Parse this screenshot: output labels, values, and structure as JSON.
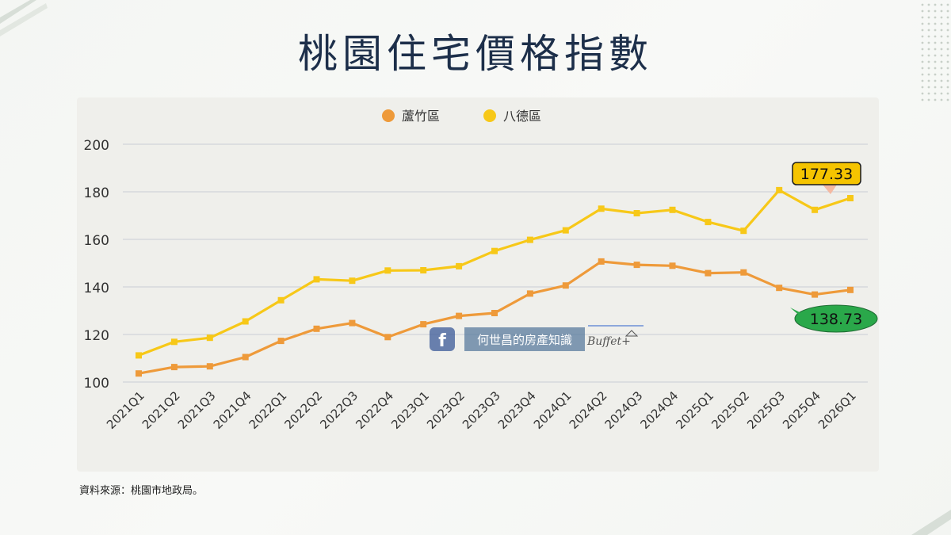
{
  "title": "桃園住宅價格指數",
  "source": "資料來源：桃園市地政局。",
  "watermark": {
    "text": "何世昌的房產知識",
    "brand": "Buffet+",
    "icon": "facebook-icon"
  },
  "colors": {
    "lu_zhu": "#ee9a3a",
    "ba_de": "#f7c818",
    "callout_yellow": "#f5c400",
    "callout_green": "#2aa84a",
    "title": "#1d2f4a"
  },
  "chart_data": {
    "type": "line",
    "title": "",
    "xlabel": "",
    "ylabel": "",
    "ylim": [
      100,
      200
    ],
    "yticks": [
      100,
      120,
      140,
      160,
      180,
      200
    ],
    "grid": true,
    "legend_position": "top-center",
    "categories": [
      "2021Q1",
      "2021Q2",
      "2021Q3",
      "2021Q4",
      "2022Q1",
      "2022Q2",
      "2022Q3",
      "2022Q4",
      "2023Q1",
      "2023Q2",
      "2023Q3",
      "2023Q4",
      "2024Q1",
      "2024Q2",
      "2024Q3",
      "2024Q4",
      "2025Q1",
      "2025Q2",
      "2025Q3",
      "2025Q4",
      "2026Q1"
    ],
    "series": [
      {
        "name": "蘆竹區",
        "color": "#ee9a3a",
        "values": [
          103.6,
          106.3,
          106.6,
          110.5,
          117.3,
          122.4,
          124.8,
          118.9,
          124.3,
          127.8,
          129.0,
          137.2,
          140.6,
          150.7,
          149.3,
          148.9,
          145.8,
          146.1,
          139.6,
          136.8,
          138.73
        ]
      },
      {
        "name": "八德區",
        "color": "#f7c818",
        "values": [
          111.2,
          116.9,
          118.6,
          125.5,
          134.4,
          143.2,
          142.6,
          146.9,
          147.0,
          148.7,
          155.1,
          159.8,
          163.8,
          172.9,
          171.0,
          172.4,
          167.3,
          163.6,
          180.7,
          172.4,
          177.33
        ]
      }
    ],
    "annotations": [
      {
        "series": "八德區",
        "label": "177.33",
        "style": "yellow-callout"
      },
      {
        "series": "蘆竹區",
        "label": "138.73",
        "style": "green-callout"
      }
    ]
  }
}
